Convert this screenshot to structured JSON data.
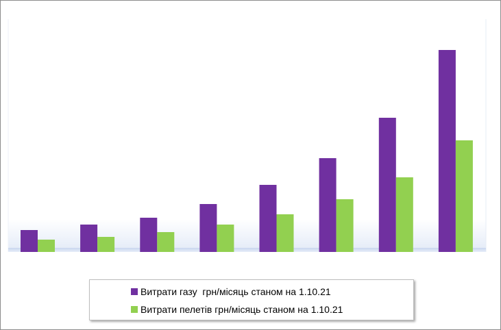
{
  "chart_data": {
    "type": "bar",
    "categories": [
      "",
      "",
      "",
      "",
      "",
      "",
      "",
      ""
    ],
    "series": [
      {
        "name": "Витрати газу  грн/місяць станом на 1.10.21",
        "color": "#7030a0",
        "values": [
          32,
          40,
          50,
          70,
          98,
          137,
          196,
          295
        ]
      },
      {
        "name": "Витрати пелетів грн/місяць станом на 1.10.21",
        "color": "#92d050",
        "values": [
          18,
          22,
          29,
          40,
          55,
          77,
          109,
          163
        ]
      }
    ],
    "ylim": [
      0,
      340
    ],
    "grid": false,
    "legend_position": "bottom",
    "background_gradient": [
      "#ffffff",
      "#e4ecf8"
    ]
  }
}
